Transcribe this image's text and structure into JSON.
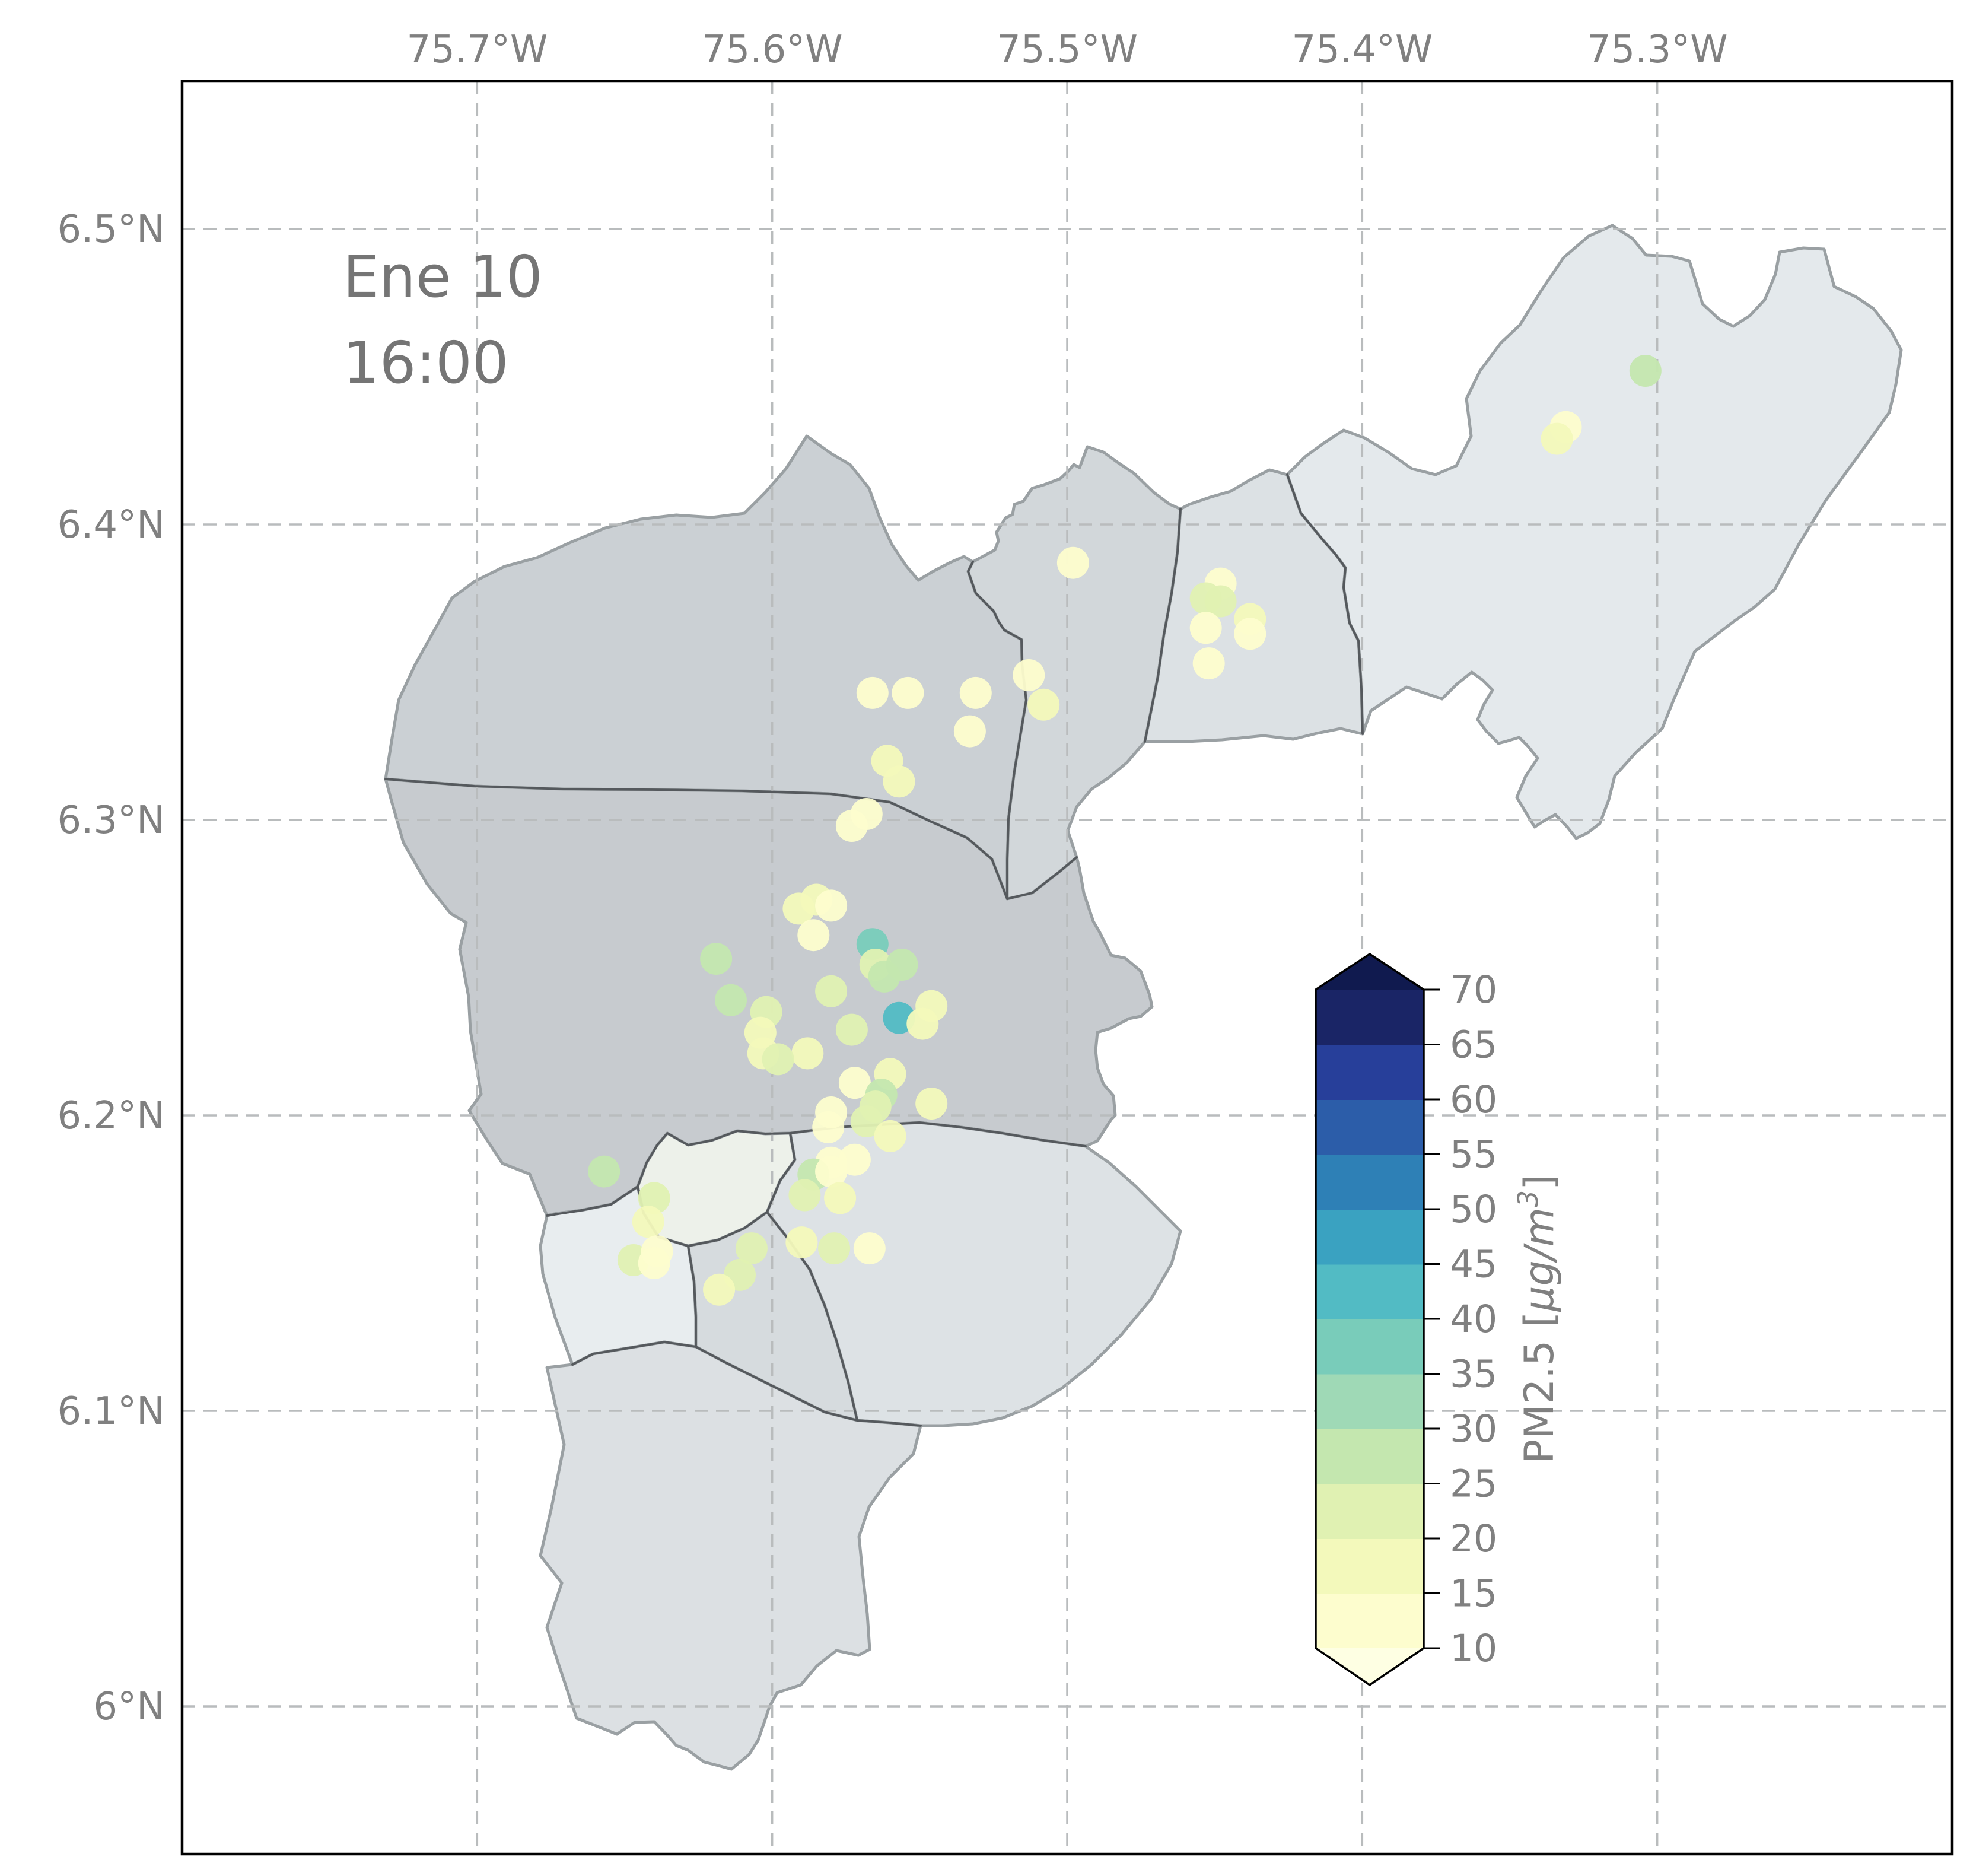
{
  "annotation": {
    "date": "Ene 10",
    "time": "16:00"
  },
  "axes": {
    "x_ticks": [
      {
        "label": "75.7°W",
        "lon": -75.7
      },
      {
        "label": "75.6°W",
        "lon": -75.6
      },
      {
        "label": "75.5°W",
        "lon": -75.5
      },
      {
        "label": "75.4°W",
        "lon": -75.4
      },
      {
        "label": "75.3°W",
        "lon": -75.3
      }
    ],
    "y_ticks": [
      {
        "label": "6.5°N",
        "lat": 6.5
      },
      {
        "label": "6.4°N",
        "lat": 6.4
      },
      {
        "label": "6.3°N",
        "lat": 6.3
      },
      {
        "label": "6.2°N",
        "lat": 6.2
      },
      {
        "label": "6.1°N",
        "lat": 6.1
      },
      {
        "label": "6°N",
        "lat": 6.0
      }
    ]
  },
  "colorbar": {
    "title": "PM2.5 [μg/m³]",
    "title_parts": {
      "prefix": "PM2.5 [",
      "mu_text": "μg/m",
      "sup": "3",
      "suffix": "]"
    },
    "tick_values": [
      10,
      15,
      20,
      25,
      30,
      35,
      40,
      45,
      50,
      55,
      60,
      65,
      70
    ],
    "levels": [
      10,
      15,
      20,
      25,
      30,
      35,
      40,
      45,
      50,
      55,
      60,
      65,
      70
    ],
    "colors": [
      "#fdfdce",
      "#f3f9bb",
      "#e0f1b2",
      "#c4e7af",
      "#9fd9b6",
      "#79ccba",
      "#52bbc4",
      "#3aa2c1",
      "#2e80b6",
      "#2c5da9",
      "#273f9a",
      "#1a2566"
    ],
    "under_color": "#feffe3",
    "over_color": "#101a4f"
  },
  "chart_data": {
    "type": "scatter",
    "geo_extent": {
      "lon_range": [
        -75.8,
        -75.2
      ],
      "lat_range": [
        5.95,
        6.55
      ]
    },
    "grid": true,
    "legend_position": "right-colorbar",
    "value_field": "pm25_ugm3",
    "stations": [
      {
        "lon": -75.304,
        "lat": 6.452,
        "pm25": 25
      },
      {
        "lon": -75.331,
        "lat": 6.433,
        "pm25": 12
      },
      {
        "lon": -75.334,
        "lat": 6.429,
        "pm25": 18
      },
      {
        "lon": -75.448,
        "lat": 6.38,
        "pm25": 12
      },
      {
        "lon": -75.453,
        "lat": 6.375,
        "pm25": 24
      },
      {
        "lon": -75.448,
        "lat": 6.374,
        "pm25": 20
      },
      {
        "lon": -75.438,
        "lat": 6.368,
        "pm25": 18
      },
      {
        "lon": -75.453,
        "lat": 6.365,
        "pm25": 13
      },
      {
        "lon": -75.438,
        "lat": 6.363,
        "pm25": 12
      },
      {
        "lon": -75.452,
        "lat": 6.353,
        "pm25": 13
      },
      {
        "lon": -75.498,
        "lat": 6.387,
        "pm25": 13
      },
      {
        "lon": -75.566,
        "lat": 6.343,
        "pm25": 12
      },
      {
        "lon": -75.554,
        "lat": 6.343,
        "pm25": 12
      },
      {
        "lon": -75.531,
        "lat": 6.343,
        "pm25": 13
      },
      {
        "lon": -75.513,
        "lat": 6.349,
        "pm25": 12
      },
      {
        "lon": -75.508,
        "lat": 6.339,
        "pm25": 18
      },
      {
        "lon": -75.533,
        "lat": 6.33,
        "pm25": 13
      },
      {
        "lon": -75.561,
        "lat": 6.32,
        "pm25": 16
      },
      {
        "lon": -75.557,
        "lat": 6.313,
        "pm25": 17
      },
      {
        "lon": -75.568,
        "lat": 6.302,
        "pm25": 13
      },
      {
        "lon": -75.573,
        "lat": 6.298,
        "pm25": 12
      },
      {
        "lon": -75.585,
        "lat": 6.273,
        "pm25": 17
      },
      {
        "lon": -75.591,
        "lat": 6.27,
        "pm25": 16
      },
      {
        "lon": -75.58,
        "lat": 6.271,
        "pm25": 13
      },
      {
        "lon": -75.586,
        "lat": 6.261,
        "pm25": 10
      },
      {
        "lon": -75.566,
        "lat": 6.258,
        "pm25": 37
      },
      {
        "lon": -75.565,
        "lat": 6.251,
        "pm25": 22
      },
      {
        "lon": -75.556,
        "lat": 6.251,
        "pm25": 28
      },
      {
        "lon": -75.562,
        "lat": 6.247,
        "pm25": 29
      },
      {
        "lon": -75.58,
        "lat": 6.242,
        "pm25": 20
      },
      {
        "lon": -75.602,
        "lat": 6.235,
        "pm25": 21
      },
      {
        "lon": -75.619,
        "lat": 6.253,
        "pm25": 27
      },
      {
        "lon": -75.614,
        "lat": 6.239,
        "pm25": 26
      },
      {
        "lon": -75.557,
        "lat": 6.233,
        "pm25": 42
      },
      {
        "lon": -75.546,
        "lat": 6.237,
        "pm25": 15
      },
      {
        "lon": -75.549,
        "lat": 6.231,
        "pm25": 19
      },
      {
        "lon": -75.604,
        "lat": 6.228,
        "pm25": 17
      },
      {
        "lon": -75.573,
        "lat": 6.229,
        "pm25": 21
      },
      {
        "lon": -75.588,
        "lat": 6.221,
        "pm25": 19
      },
      {
        "lon": -75.603,
        "lat": 6.221,
        "pm25": 17
      },
      {
        "lon": -75.598,
        "lat": 6.219,
        "pm25": 21
      },
      {
        "lon": -75.572,
        "lat": 6.211,
        "pm25": 12
      },
      {
        "lon": -75.56,
        "lat": 6.214,
        "pm25": 17
      },
      {
        "lon": -75.563,
        "lat": 6.207,
        "pm25": 28
      },
      {
        "lon": -75.565,
        "lat": 6.203,
        "pm25": 20
      },
      {
        "lon": -75.546,
        "lat": 6.204,
        "pm25": 18
      },
      {
        "lon": -75.58,
        "lat": 6.201,
        "pm25": 12
      },
      {
        "lon": -75.568,
        "lat": 6.198,
        "pm25": 20
      },
      {
        "lon": -75.581,
        "lat": 6.196,
        "pm25": 12
      },
      {
        "lon": -75.56,
        "lat": 6.193,
        "pm25": 17
      },
      {
        "lon": -75.58,
        "lat": 6.184,
        "pm25": 12
      },
      {
        "lon": -75.572,
        "lat": 6.185,
        "pm25": 12
      },
      {
        "lon": -75.586,
        "lat": 6.18,
        "pm25": 27
      },
      {
        "lon": -75.58,
        "lat": 6.181,
        "pm25": 13
      },
      {
        "lon": -75.589,
        "lat": 6.173,
        "pm25": 21
      },
      {
        "lon": -75.577,
        "lat": 6.172,
        "pm25": 17
      },
      {
        "lon": -75.657,
        "lat": 6.181,
        "pm25": 27
      },
      {
        "lon": -75.64,
        "lat": 6.172,
        "pm25": 21
      },
      {
        "lon": -75.642,
        "lat": 6.164,
        "pm25": 17
      },
      {
        "lon": -75.647,
        "lat": 6.151,
        "pm25": 20
      },
      {
        "lon": -75.639,
        "lat": 6.154,
        "pm25": 12
      },
      {
        "lon": -75.64,
        "lat": 6.15,
        "pm25": 11
      },
      {
        "lon": -75.59,
        "lat": 6.157,
        "pm25": 19
      },
      {
        "lon": -75.579,
        "lat": 6.155,
        "pm25": 21
      },
      {
        "lon": -75.567,
        "lat": 6.155,
        "pm25": 12
      },
      {
        "lon": -75.607,
        "lat": 6.155,
        "pm25": 24
      },
      {
        "lon": -75.611,
        "lat": 6.146,
        "pm25": 20
      },
      {
        "lon": -75.618,
        "lat": 6.141,
        "pm25": 17
      }
    ]
  }
}
